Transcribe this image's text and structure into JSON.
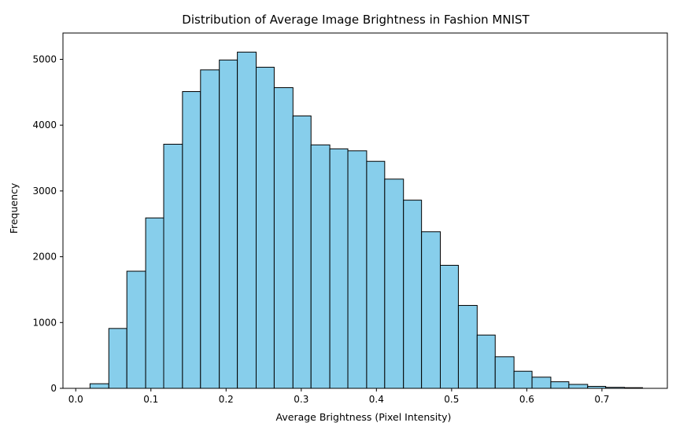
{
  "chart_data": {
    "type": "bar",
    "title": "Distribution of Average Image Brightness in Fashion MNIST",
    "xlabel": "Average Brightness (Pixel Intensity)",
    "ylabel": "Frequency",
    "xlim": [
      -0.017,
      0.787
    ],
    "ylim": [
      0,
      5400
    ],
    "xticks": [
      0.0,
      0.1,
      0.2,
      0.3,
      0.4,
      0.5,
      0.6,
      0.7
    ],
    "xtick_labels": [
      "0.0",
      "0.1",
      "0.2",
      "0.3",
      "0.4",
      "0.5",
      "0.6",
      "0.7"
    ],
    "yticks": [
      0,
      1000,
      2000,
      3000,
      4000,
      5000
    ],
    "ytick_labels": [
      "0",
      "1000",
      "2000",
      "3000",
      "4000",
      "5000"
    ],
    "bar_color": "#87ceeb",
    "edge_color": "#000000",
    "grid": false,
    "bins": [
      {
        "x0": 0.019,
        "x1": 0.044,
        "value": 70
      },
      {
        "x0": 0.044,
        "x1": 0.068,
        "value": 910
      },
      {
        "x0": 0.068,
        "x1": 0.093,
        "value": 1780
      },
      {
        "x0": 0.093,
        "x1": 0.117,
        "value": 2590
      },
      {
        "x0": 0.117,
        "x1": 0.142,
        "value": 3710
      },
      {
        "x0": 0.142,
        "x1": 0.166,
        "value": 4510
      },
      {
        "x0": 0.166,
        "x1": 0.191,
        "value": 4840
      },
      {
        "x0": 0.191,
        "x1": 0.215,
        "value": 4990
      },
      {
        "x0": 0.215,
        "x1": 0.24,
        "value": 5110
      },
      {
        "x0": 0.24,
        "x1": 0.264,
        "value": 4880
      },
      {
        "x0": 0.264,
        "x1": 0.289,
        "value": 4570
      },
      {
        "x0": 0.289,
        "x1": 0.313,
        "value": 4140
      },
      {
        "x0": 0.313,
        "x1": 0.338,
        "value": 3700
      },
      {
        "x0": 0.338,
        "x1": 0.362,
        "value": 3640
      },
      {
        "x0": 0.362,
        "x1": 0.387,
        "value": 3610
      },
      {
        "x0": 0.387,
        "x1": 0.411,
        "value": 3450
      },
      {
        "x0": 0.411,
        "x1": 0.436,
        "value": 3180
      },
      {
        "x0": 0.436,
        "x1": 0.46,
        "value": 2860
      },
      {
        "x0": 0.46,
        "x1": 0.485,
        "value": 2380
      },
      {
        "x0": 0.485,
        "x1": 0.509,
        "value": 1870
      },
      {
        "x0": 0.509,
        "x1": 0.534,
        "value": 1260
      },
      {
        "x0": 0.534,
        "x1": 0.558,
        "value": 810
      },
      {
        "x0": 0.558,
        "x1": 0.583,
        "value": 480
      },
      {
        "x0": 0.583,
        "x1": 0.607,
        "value": 260
      },
      {
        "x0": 0.607,
        "x1": 0.632,
        "value": 170
      },
      {
        "x0": 0.632,
        "x1": 0.656,
        "value": 100
      },
      {
        "x0": 0.656,
        "x1": 0.681,
        "value": 60
      },
      {
        "x0": 0.681,
        "x1": 0.705,
        "value": 30
      },
      {
        "x0": 0.705,
        "x1": 0.73,
        "value": 15
      },
      {
        "x0": 0.73,
        "x1": 0.754,
        "value": 10
      }
    ]
  }
}
